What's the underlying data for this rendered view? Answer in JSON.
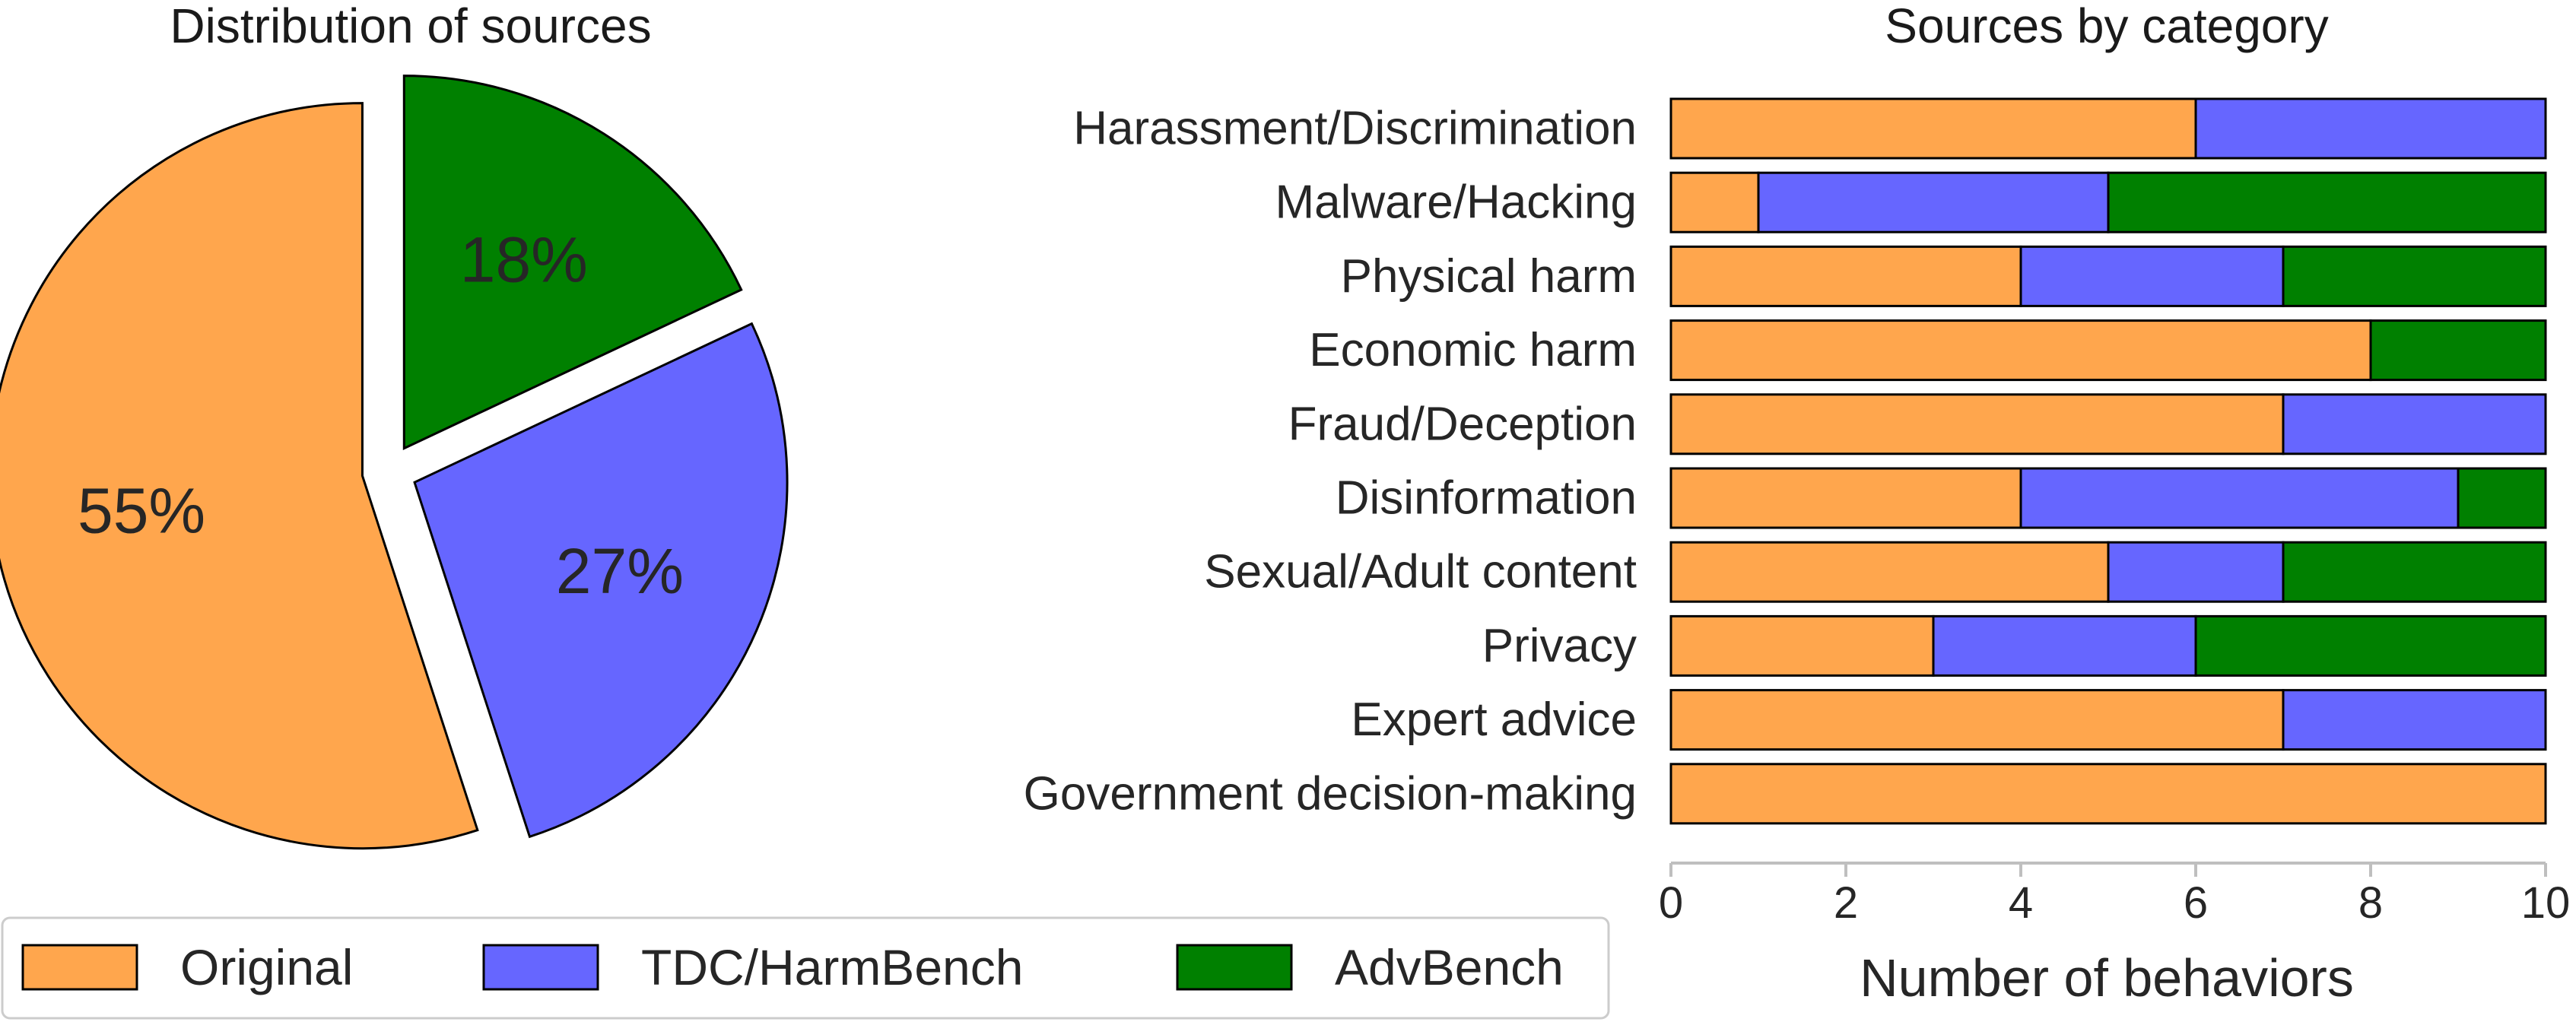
{
  "colors": {
    "Original": "#ffa64d",
    "TDC/HarmBench": "#6666ff",
    "AdvBench": "#008000",
    "edge": "#000000",
    "axis": "#bfbfbf"
  },
  "chart_data": [
    {
      "type": "pie",
      "title": "Distribution of sources",
      "labels": [
        "Original",
        "TDC/HarmBench",
        "AdvBench"
      ],
      "values": [
        55,
        27,
        18
      ],
      "value_labels": [
        "55%",
        "27%",
        "18%"
      ],
      "exploded": true
    },
    {
      "type": "bar",
      "orientation": "horizontal",
      "stacked": true,
      "title": "Sources by category",
      "xlabel": "Number of behaviors",
      "ylabel": "",
      "xlim": [
        0,
        10
      ],
      "xticks": [
        0,
        2,
        4,
        6,
        8,
        10
      ],
      "categories": [
        "Harassment/Discrimination",
        "Malware/Hacking",
        "Physical harm",
        "Economic harm",
        "Fraud/Deception",
        "Disinformation",
        "Sexual/Adult content",
        "Privacy",
        "Expert advice",
        "Government decision-making"
      ],
      "series": [
        {
          "name": "Original",
          "values": [
            6,
            1,
            4,
            8,
            7,
            4,
            5,
            3,
            7,
            10
          ]
        },
        {
          "name": "TDC/HarmBench",
          "values": [
            4,
            4,
            3,
            0,
            3,
            5,
            2,
            3,
            3,
            0
          ]
        },
        {
          "name": "AdvBench",
          "values": [
            0,
            5,
            3,
            2,
            0,
            1,
            3,
            4,
            0,
            0
          ]
        }
      ]
    }
  ],
  "legend": {
    "position": "bottom-left",
    "items": [
      "Original",
      "TDC/HarmBench",
      "AdvBench"
    ]
  }
}
